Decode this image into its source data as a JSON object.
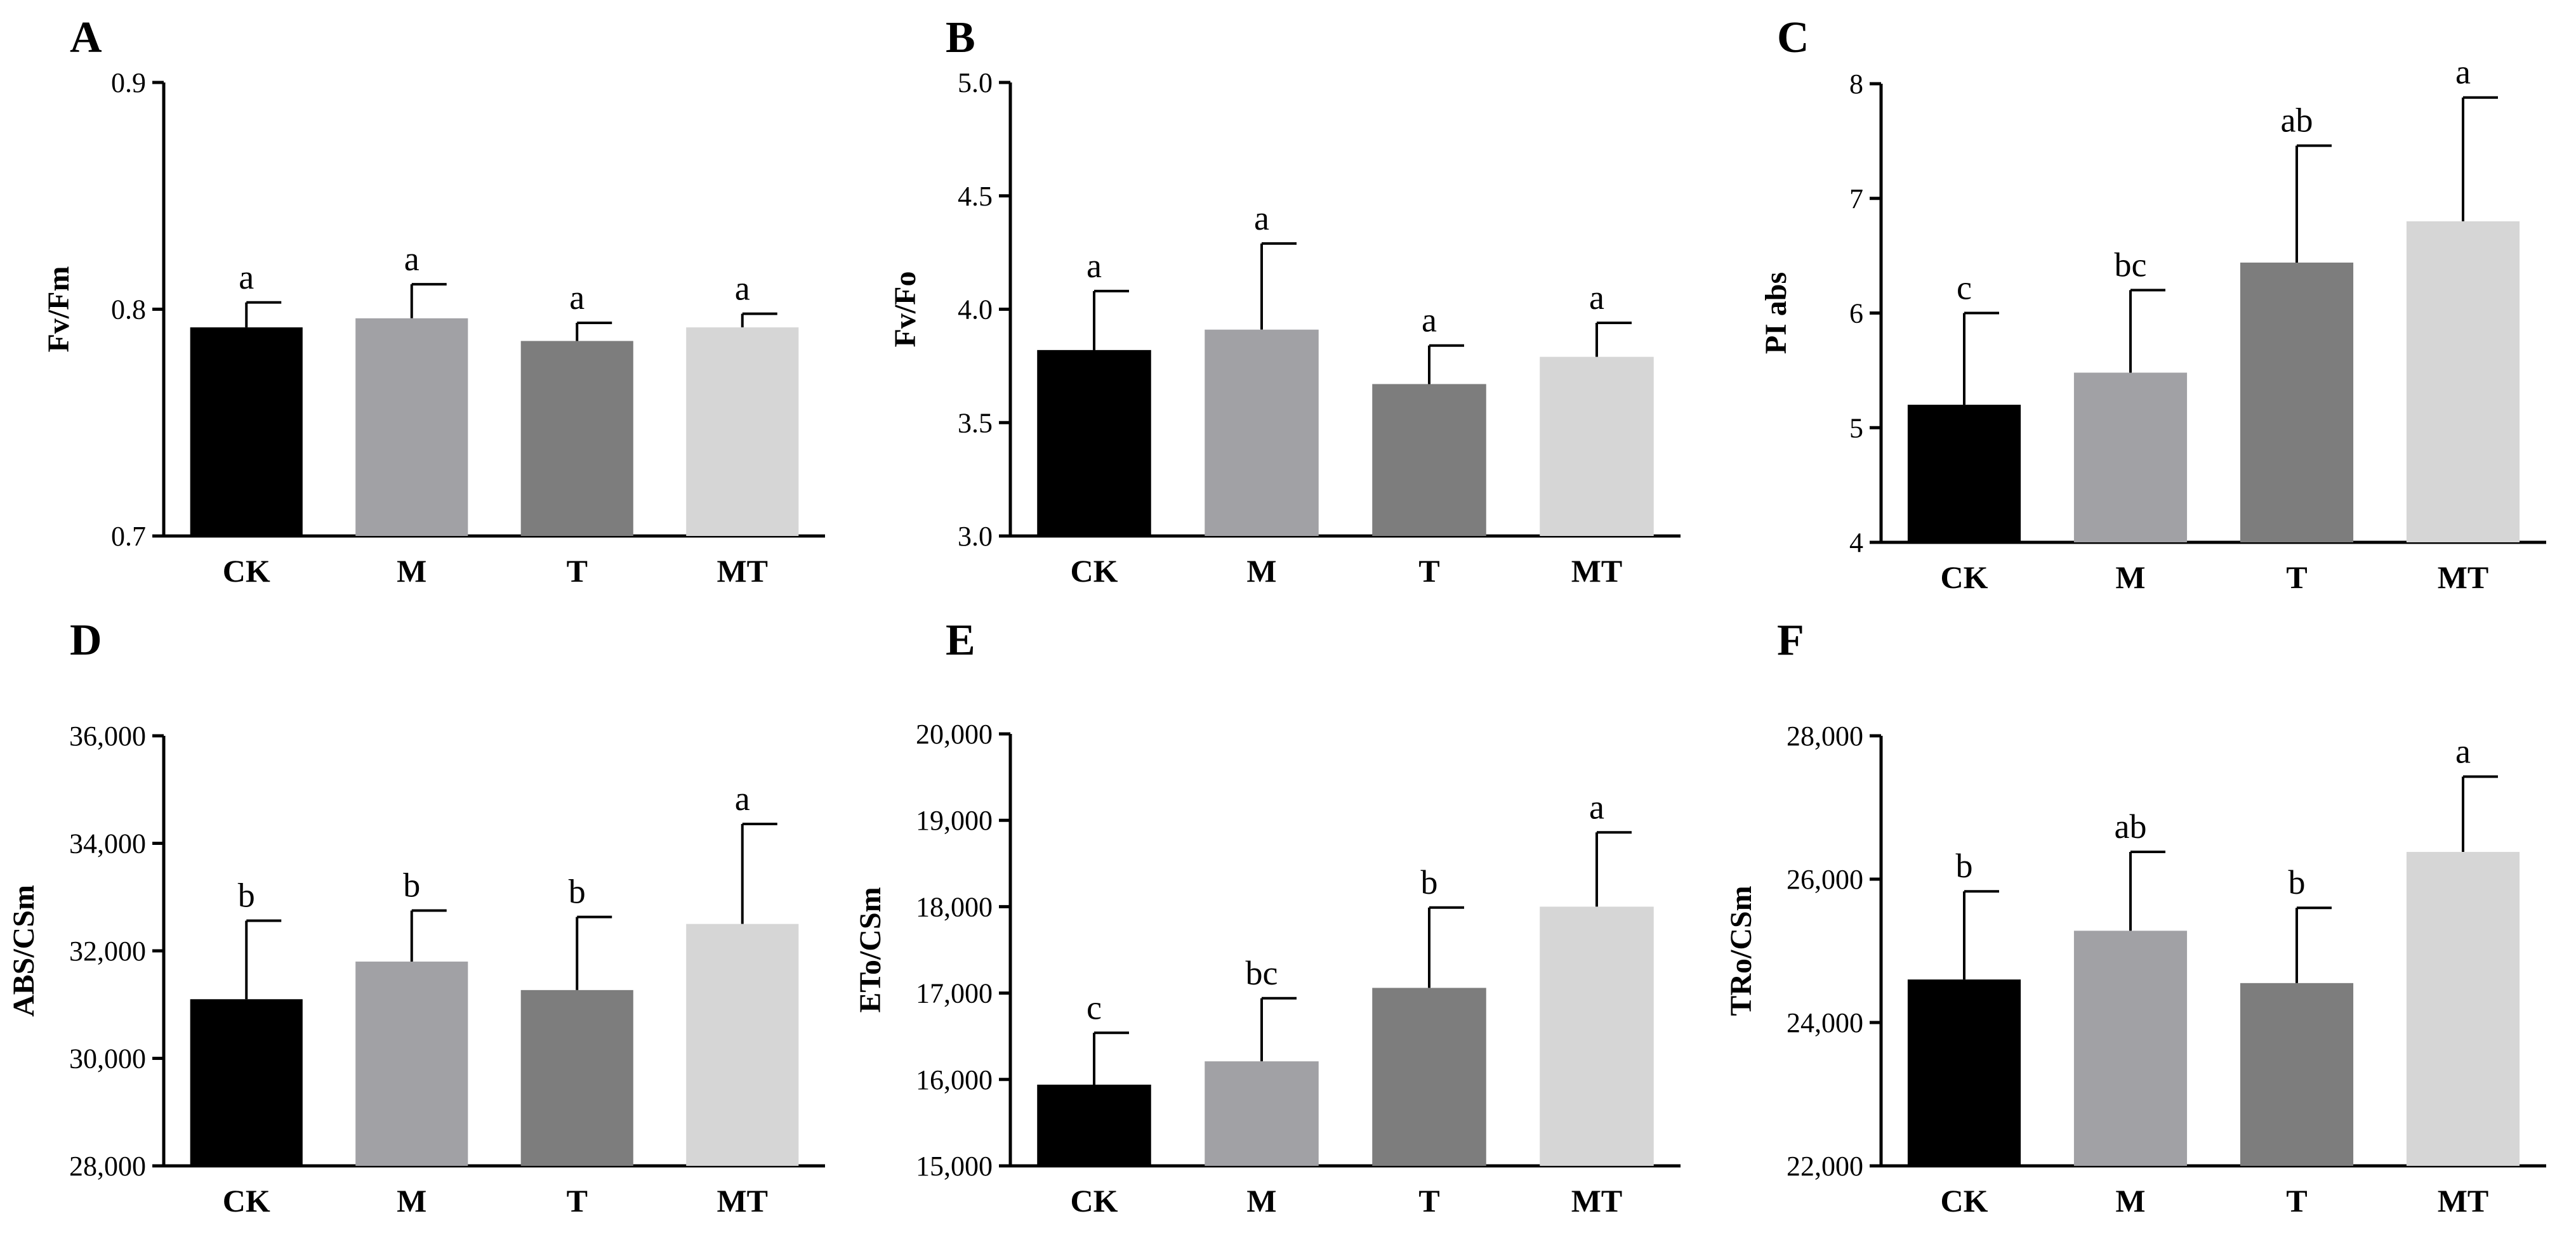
{
  "figure": {
    "categories": [
      "CK",
      "M",
      "T",
      "MT"
    ],
    "bar_colors": [
      "#000000",
      "#a1a1a5",
      "#7d7d7d",
      "#d6d6d6"
    ]
  },
  "chart_data": [
    {
      "panel": "A",
      "type": "bar",
      "ylabel": "Fv/Fm",
      "categories": [
        "CK",
        "M",
        "T",
        "MT"
      ],
      "values": [
        0.792,
        0.796,
        0.786,
        0.792
      ],
      "errors": [
        0.011,
        0.015,
        0.008,
        0.006
      ],
      "significance": [
        "a",
        "a",
        "a",
        "a"
      ],
      "ylim": [
        0.7,
        0.9
      ],
      "yticks": [
        0.7,
        0.8,
        0.9
      ],
      "yticklabels": [
        "0.7",
        "0.8",
        "0.9"
      ]
    },
    {
      "panel": "B",
      "type": "bar",
      "ylabel": "Fv/Fo",
      "categories": [
        "CK",
        "M",
        "T",
        "MT"
      ],
      "values": [
        3.82,
        3.91,
        3.67,
        3.79
      ],
      "errors": [
        0.26,
        0.38,
        0.17,
        0.15
      ],
      "significance": [
        "a",
        "a",
        "a",
        "a"
      ],
      "ylim": [
        3.0,
        5.0
      ],
      "yticks": [
        3.0,
        3.5,
        4.0,
        4.5,
        5.0
      ],
      "yticklabels": [
        "3.0",
        "3.5",
        "4.0",
        "4.5",
        "5.0"
      ]
    },
    {
      "panel": "C",
      "type": "bar",
      "ylabel": "PI abs",
      "categories": [
        "CK",
        "M",
        "T",
        "MT"
      ],
      "values": [
        5.2,
        5.48,
        6.44,
        6.8
      ],
      "errors": [
        0.8,
        0.72,
        1.02,
        1.08
      ],
      "significance": [
        "c",
        "bc",
        "ab",
        "a"
      ],
      "ylim": [
        4,
        8
      ],
      "yticks": [
        4,
        5,
        6,
        7,
        8
      ],
      "yticklabels": [
        "4",
        "5",
        "6",
        "7",
        "8"
      ]
    },
    {
      "panel": "D",
      "type": "bar",
      "ylabel": "ABS/CSm",
      "categories": [
        "CK",
        "M",
        "T",
        "MT"
      ],
      "values": [
        31100,
        31800,
        31270,
        32500
      ],
      "errors": [
        1460,
        950,
        1360,
        1860
      ],
      "significance": [
        "b",
        "b",
        "b",
        "a"
      ],
      "ylim": [
        28000,
        36000
      ],
      "yticks": [
        28000,
        30000,
        32000,
        34000,
        36000
      ],
      "yticklabels": [
        "28,000",
        "30,000",
        "32,000",
        "34,000",
        "36,000"
      ]
    },
    {
      "panel": "E",
      "type": "bar",
      "ylabel": "ETo/CSm",
      "categories": [
        "CK",
        "M",
        "T",
        "MT"
      ],
      "values": [
        15940,
        16210,
        17060,
        18000
      ],
      "errors": [
        600,
        730,
        930,
        860
      ],
      "significance": [
        "c",
        "bc",
        "b",
        "a"
      ],
      "ylim": [
        15000,
        20000
      ],
      "yticks": [
        15000,
        16000,
        17000,
        18000,
        19000,
        20000
      ],
      "yticklabels": [
        "15,000",
        "16,000",
        "17,000",
        "18,000",
        "19,000",
        "20,000"
      ]
    },
    {
      "panel": "F",
      "type": "bar",
      "ylabel": "TRo/CSm",
      "categories": [
        "CK",
        "M",
        "T",
        "MT"
      ],
      "values": [
        24600,
        25280,
        24550,
        26380
      ],
      "errors": [
        1230,
        1100,
        1050,
        1050
      ],
      "significance": [
        "b",
        "ab",
        "b",
        "a"
      ],
      "ylim": [
        22000,
        28000
      ],
      "yticks": [
        22000,
        24000,
        26000,
        28000
      ],
      "yticklabels": [
        "22,000",
        "24,000",
        "26,000",
        "28,000"
      ]
    }
  ]
}
